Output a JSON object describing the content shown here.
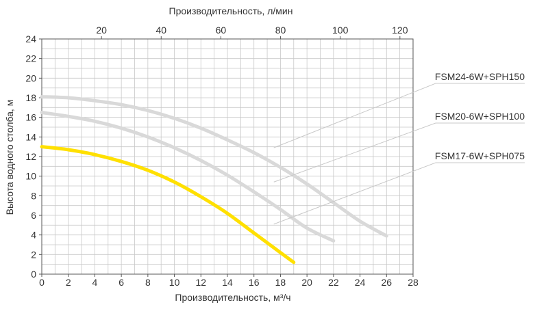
{
  "chart_data": {
    "type": "line",
    "xlabel": "Производительность, м³/ч",
    "x2label": "Производительность, л/мин",
    "ylabel": "Высота водного столба, м",
    "xlim": [
      0,
      28
    ],
    "ylim": [
      0,
      24
    ],
    "x2lim": [
      0,
      124.4
    ],
    "x_ticks": [
      "0",
      "2",
      "4",
      "6",
      "8",
      "10",
      "12",
      "14",
      "16",
      "18",
      "20",
      "22",
      "24",
      "26",
      "28"
    ],
    "y_ticks": [
      "0",
      "2",
      "4",
      "6",
      "8",
      "10",
      "12",
      "14",
      "16",
      "18",
      "20",
      "22",
      "24"
    ],
    "x2_ticks": [
      "20",
      "40",
      "60",
      "80",
      "100",
      "120"
    ],
    "grid": true,
    "series": [
      {
        "name": "FSM24-6W+SPH150",
        "color": "#d9d9d9",
        "x": [
          0,
          2,
          4,
          6,
          8,
          10,
          12,
          14,
          16,
          18,
          20,
          22,
          24,
          26
        ],
        "y": [
          18.1,
          18.0,
          17.7,
          17.3,
          16.7,
          15.9,
          14.9,
          13.7,
          12.4,
          10.9,
          9.2,
          7.3,
          5.4,
          3.9
        ]
      },
      {
        "name": "FSM20-6W+SPH100",
        "color": "#d9d9d9",
        "x": [
          0,
          2,
          4,
          6,
          8,
          10,
          12,
          14,
          16,
          18,
          20,
          22
        ],
        "y": [
          16.5,
          16.1,
          15.6,
          14.9,
          14.0,
          12.9,
          11.6,
          10.1,
          8.4,
          6.6,
          4.7,
          3.4
        ]
      },
      {
        "name": "FSM17-6W+SPH075",
        "color": "#ffe000",
        "x": [
          0,
          2,
          4,
          6,
          8,
          10,
          12,
          14,
          16,
          18,
          19
        ],
        "y": [
          13.0,
          12.7,
          12.2,
          11.5,
          10.6,
          9.4,
          7.9,
          6.2,
          4.2,
          2.2,
          1.2
        ]
      }
    ]
  }
}
